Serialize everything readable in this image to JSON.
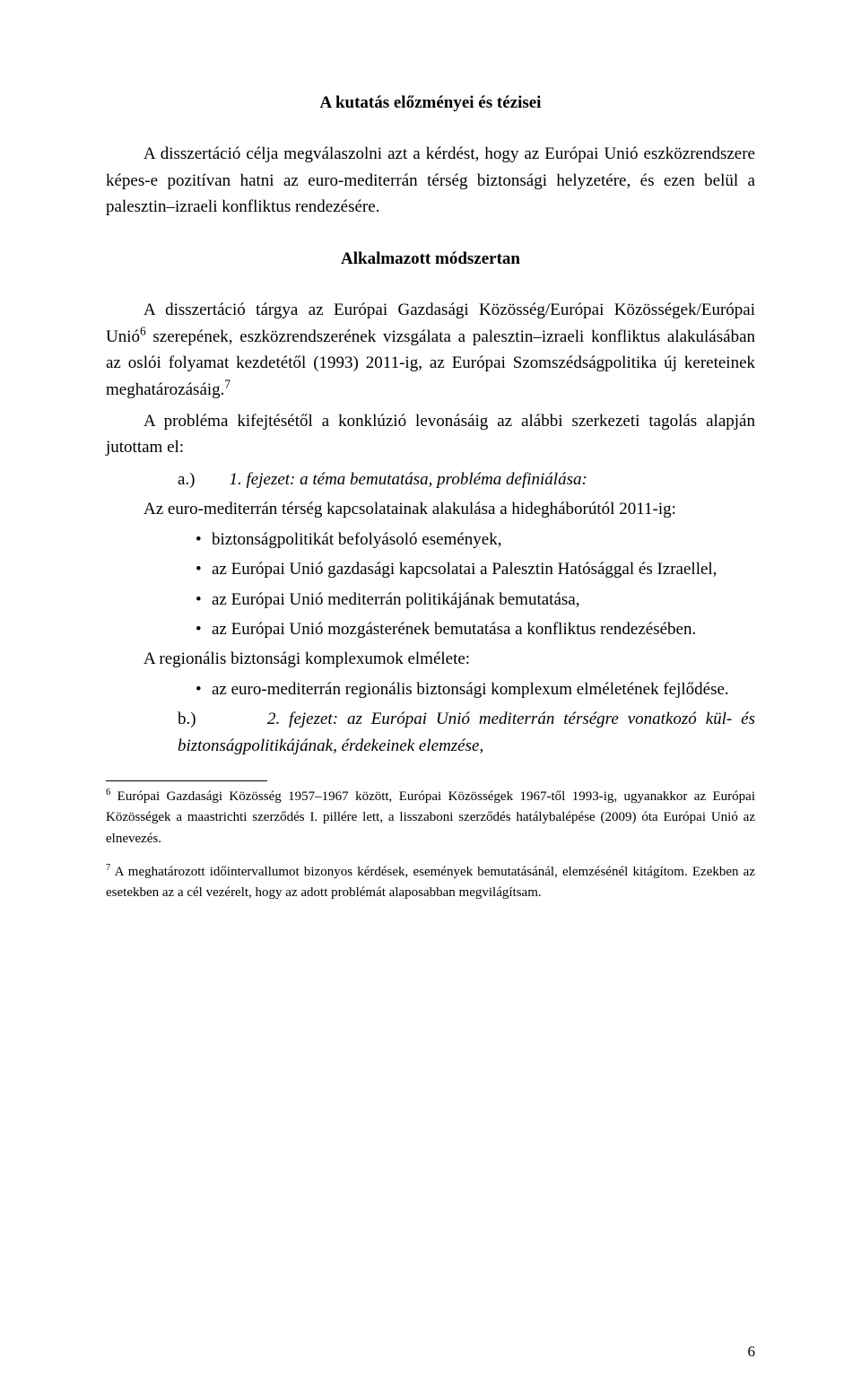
{
  "h1": "A kutatás előzményei és tézisei",
  "p1": "A disszertáció célja megválaszolni azt a kérdést, hogy az Európai Unió eszközrendszere képes-e pozitívan hatni az euro-mediterrán térség biztonsági helyzetére, és ezen belül a palesztin–izraeli konfliktus rendezésére.",
  "h2": "Alkalmazott módszertan",
  "p2a": "A disszertáció tárgya az Európai Gazdasági Közösség/Európai Közösségek/Európai Unió",
  "p2b": " szerepének, eszközrendszerének vizsgálata a palesztin–izraeli konfliktus alakulásában az oslói folyamat kezdetétől (1993) 2011-ig, az Európai Szomszédságpolitika új kereteinek meghatározásáig.",
  "p3": "A probléma kifejtésétől a konklúzió levonásáig az alábbi szerkezeti tagolás alapján jutottam el:",
  "a_label": "a.)",
  "a_title": "1. fejezet: a téma bemutatása, probléma definiálása:",
  "a_intro": "Az euro-mediterrán térség kapcsolatainak alakulása a hidegháborútól 2011-ig:",
  "a_bullets": [
    "biztonságpolitikát befolyásoló események,",
    "az Európai Unió gazdasági kapcsolatai a Palesztin Hatósággal és Izraellel,",
    "az Európai Unió mediterrán politikájának bemutatása,",
    "az Európai Unió mozgásterének bemutatása a konfliktus rendezésében."
  ],
  "a_mid": "A regionális biztonsági komplexumok elmélete:",
  "a_bullets2": [
    "az euro-mediterrán regionális biztonsági komplexum elméletének fejlődése."
  ],
  "b_label": "b.)",
  "b_title": "2. fejezet: az Európai Unió mediterrán térségre vonatkozó kül- és biztonságpolitikájának, érdekeinek elemzése,",
  "fn6_a": " Európai Gazdasági Közösség 1957–1967 között, Európai Közösségek 1967-től 1993-ig, ugyanakkor az Európai Közösségek a maastrichti szerződés I. pillére lett, a lisszaboni szerződés hatálybalépése (2009) óta Európai Unió az elnevezés.",
  "fn7_a": " A meghatározott időintervallumot bizonyos kérdések, események bemutatásánál, elemzésénél kitágítom. Ezekben az esetekben az a cél vezérelt, hogy az adott problémát alaposabban megvilágítsam.",
  "pagenum": "6"
}
